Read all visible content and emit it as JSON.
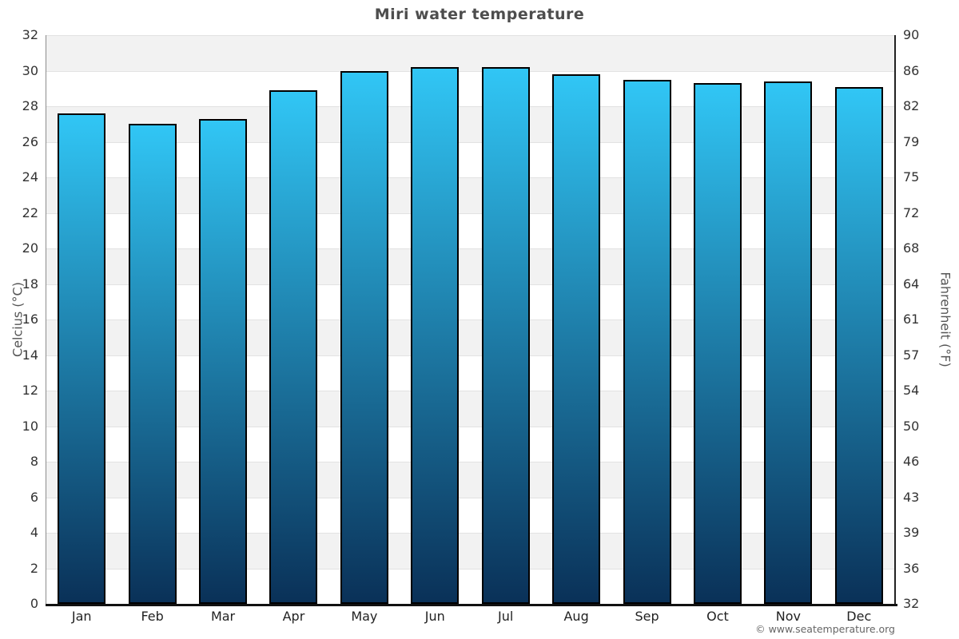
{
  "title": "Miri water temperature",
  "footer": "© www.seatemperature.org",
  "chart_data": {
    "type": "bar",
    "title": "Miri water temperature",
    "categories": [
      "Jan",
      "Feb",
      "Mar",
      "Apr",
      "May",
      "Jun",
      "Jul",
      "Aug",
      "Sep",
      "Oct",
      "Nov",
      "Dec"
    ],
    "values": [
      27.6,
      27.0,
      27.3,
      28.9,
      30.0,
      30.2,
      30.2,
      29.8,
      29.5,
      29.3,
      29.4,
      29.1
    ],
    "unit": "°C",
    "ylabel_left": "Celcius (°C)",
    "ylabel_right": "Fahrenheit (°F)",
    "ylim": [
      0,
      32
    ],
    "celsius_ticks": [
      32,
      30,
      28,
      26,
      24,
      22,
      20,
      18,
      16,
      14,
      12,
      10,
      8,
      6,
      4,
      2,
      0
    ],
    "fahrenheit_ticks": [
      90,
      86,
      82,
      79,
      75,
      72,
      68,
      64,
      61,
      57,
      54,
      50,
      46,
      43,
      39,
      36,
      32
    ],
    "grid": "alternating horizontal shaded bands every 2°C, shaded band at top",
    "legend": "none"
  },
  "colors": {
    "bar_top": "#31c6f5",
    "bar_bottom": "#0a3158",
    "bar_border": "#000000",
    "band_shaded": "#f2f2f2",
    "band_plain": "#ffffff",
    "gridline": "#e2e2e2",
    "axis_left_line": "#8c8c8c",
    "axis_right_line": "#222222",
    "axis_bottom_line": "#111111",
    "title_text": "#4d4d4d",
    "tick_text": "#333333",
    "month_text": "#222222",
    "axis_title_text": "#555555",
    "footer_text": "#666666"
  }
}
